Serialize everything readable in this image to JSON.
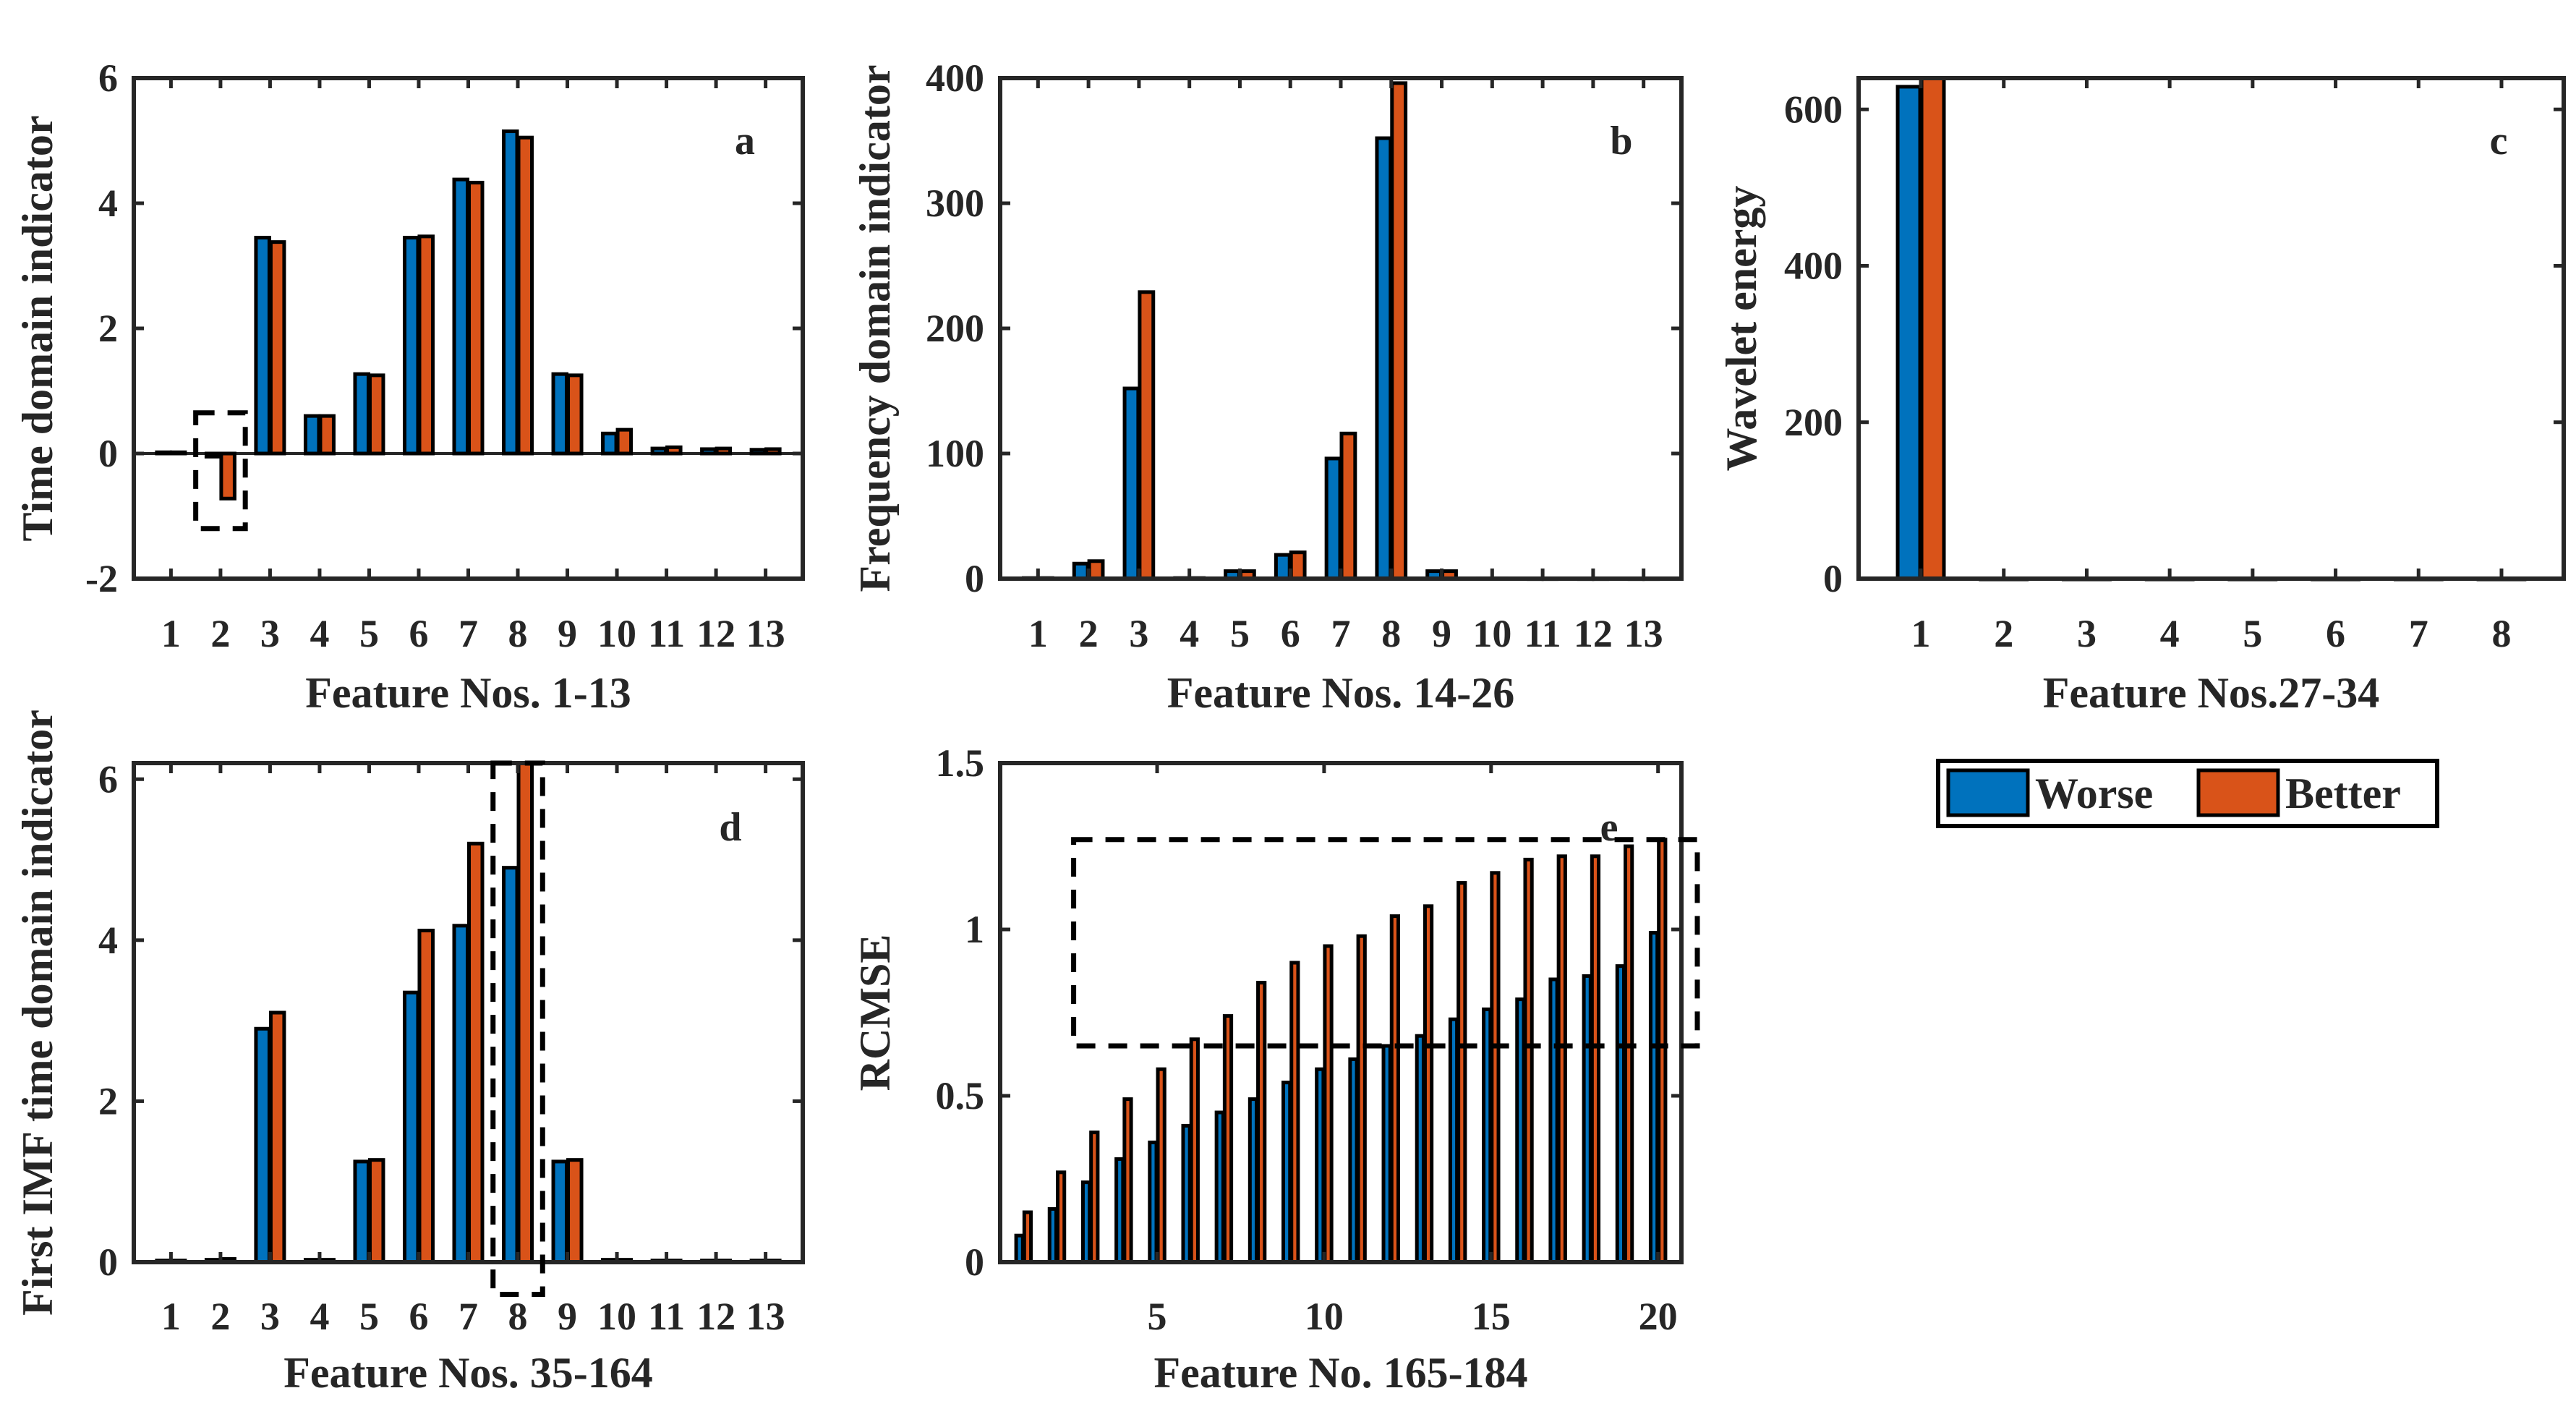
{
  "colors": {
    "worse": "#0072BD",
    "better": "#D95319",
    "axis": "#262626"
  },
  "legend": {
    "worse_label": "Worse",
    "better_label": "Better"
  },
  "chart_data": [
    {
      "id": "a",
      "type": "bar",
      "tag": "a",
      "xlabel": "Feature Nos. 1-13",
      "ylabel": "Time domain indicator",
      "categories": [
        "1",
        "2",
        "3",
        "4",
        "5",
        "6",
        "7",
        "8",
        "9",
        "10",
        "11",
        "12",
        "13"
      ],
      "ylim": [
        -2,
        6
      ],
      "yticks": [
        -2,
        0,
        2,
        4,
        6
      ],
      "series": [
        {
          "name": "Worse",
          "values": [
            0.02,
            -0.05,
            3.45,
            0.6,
            1.27,
            3.45,
            4.38,
            5.15,
            1.27,
            0.32,
            0.08,
            0.07,
            0.06
          ]
        },
        {
          "name": "Better",
          "values": [
            0.02,
            -0.72,
            3.38,
            0.6,
            1.25,
            3.47,
            4.33,
            5.05,
            1.25,
            0.38,
            0.1,
            0.08,
            0.07
          ]
        }
      ],
      "highlight": {
        "category": "2",
        "ymin": -1.2,
        "ymax": 0.65
      }
    },
    {
      "id": "b",
      "type": "bar",
      "tag": "b",
      "xlabel": "Feature Nos. 14-26",
      "ylabel": "Frequency domain indicator",
      "categories": [
        "1",
        "2",
        "3",
        "4",
        "5",
        "6",
        "7",
        "8",
        "9",
        "10",
        "11",
        "12",
        "13"
      ],
      "ylim": [
        0,
        400
      ],
      "yticks": [
        0,
        100,
        200,
        300,
        400
      ],
      "series": [
        {
          "name": "Worse",
          "values": [
            0.5,
            12,
            152,
            0.5,
            6,
            19,
            96,
            352,
            6,
            0.3,
            0.2,
            0.2,
            0.2
          ]
        },
        {
          "name": "Better",
          "values": [
            0.5,
            14,
            229,
            0.5,
            6,
            21,
            116,
            396,
            6,
            0.3,
            0.2,
            0.2,
            0.2
          ]
        }
      ]
    },
    {
      "id": "c",
      "type": "bar",
      "tag": "c",
      "xlabel": "Feature Nos.27-34",
      "ylabel": "Wavelet energy",
      "categories": [
        "1",
        "2",
        "3",
        "4",
        "5",
        "6",
        "7",
        "8"
      ],
      "ylim": [
        0,
        640
      ],
      "yticks": [
        0,
        200,
        400,
        600
      ],
      "series": [
        {
          "name": "Worse",
          "values": [
            629,
            0,
            0,
            0,
            0,
            0,
            0,
            0
          ]
        },
        {
          "name": "Better",
          "values": [
            640,
            0,
            0,
            0,
            0,
            0,
            0,
            0
          ]
        }
      ]
    },
    {
      "id": "d",
      "type": "bar",
      "tag": "d",
      "xlabel": "Feature Nos. 35-164",
      "ylabel": "First IMF time domain indicator",
      "categories": [
        "1",
        "2",
        "3",
        "4",
        "5",
        "6",
        "7",
        "8",
        "9",
        "10",
        "11",
        "12",
        "13"
      ],
      "ylim": [
        0,
        6.2
      ],
      "yticks": [
        0,
        2,
        4,
        6
      ],
      "series": [
        {
          "name": "Worse",
          "values": [
            0.02,
            0.03,
            2.9,
            0.03,
            1.25,
            3.35,
            4.18,
            4.9,
            1.25,
            0.03,
            0.02,
            0.02,
            0.02
          ]
        },
        {
          "name": "Better",
          "values": [
            0.02,
            0.04,
            3.1,
            0.03,
            1.27,
            4.12,
            5.2,
            6.2,
            1.27,
            0.03,
            0.02,
            0.02,
            0.02
          ]
        }
      ],
      "highlight": {
        "category": "8",
        "ymin": -0.4,
        "ymax": 6.2
      }
    },
    {
      "id": "e",
      "type": "bar",
      "tag": "e",
      "xlabel": "Feature No. 165-184",
      "ylabel": "RCMSE",
      "categories": [
        "1",
        "2",
        "3",
        "4",
        "5",
        "6",
        "7",
        "8",
        "9",
        "10",
        "11",
        "12",
        "13",
        "14",
        "15",
        "16",
        "17",
        "18",
        "19",
        "20"
      ],
      "xtick_labels": {
        "5": "5",
        "10": "10",
        "15": "15",
        "20": "20"
      },
      "ylim": [
        0,
        1.5
      ],
      "yticks": [
        0,
        0.5,
        1,
        1.5
      ],
      "series": [
        {
          "name": "Worse",
          "values": [
            0.08,
            0.16,
            0.24,
            0.31,
            0.36,
            0.41,
            0.45,
            0.49,
            0.54,
            0.58,
            0.61,
            0.65,
            0.68,
            0.73,
            0.76,
            0.79,
            0.85,
            0.86,
            0.89,
            0.99
          ]
        },
        {
          "name": "Better",
          "values": [
            0.15,
            0.27,
            0.39,
            0.49,
            0.58,
            0.67,
            0.74,
            0.84,
            0.9,
            0.95,
            0.98,
            1.04,
            1.07,
            1.14,
            1.17,
            1.21,
            1.22,
            1.22,
            1.25,
            1.27
          ]
        }
      ],
      "highlight": {
        "from_category": "2",
        "ymin": 0.65,
        "ymax": 1.27
      }
    }
  ]
}
